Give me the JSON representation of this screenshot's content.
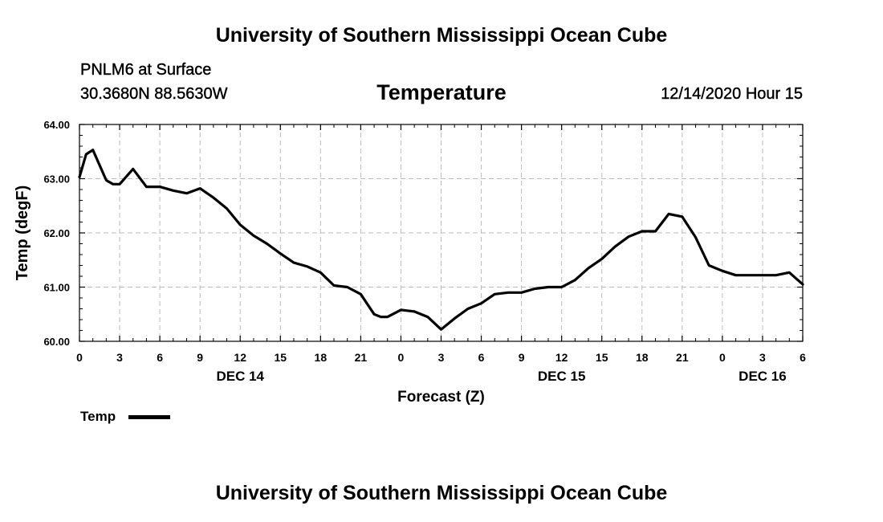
{
  "header": {
    "title": "University of Southern Mississippi Ocean Cube",
    "station": "PNLM6 at Surface",
    "coords": "30.3680N 88.5630W",
    "variable": "Temperature",
    "datetime": "12/14/2020 Hour 15",
    "footer_title": "University of Southern Mississippi Ocean Cube"
  },
  "legend": {
    "label": "Temp"
  },
  "colors": {
    "line": "#000000",
    "grid": "#bbbbbb",
    "axis": "#000000"
  },
  "chart_data": {
    "type": "line",
    "title": "Temperature",
    "xlabel": "Forecast (Z)",
    "ylabel": "Temp (degF)",
    "xlim": [
      0,
      54
    ],
    "ylim": [
      60.0,
      64.0
    ],
    "grid": true,
    "legend_position": "bottom-left",
    "x_ticks": [
      0,
      3,
      6,
      9,
      12,
      15,
      18,
      21,
      24,
      27,
      30,
      33,
      36,
      39,
      42,
      45,
      48,
      51,
      54
    ],
    "x_tick_labels": [
      "0",
      "3",
      "6",
      "9",
      "12",
      "15",
      "18",
      "21",
      "0",
      "3",
      "6",
      "9",
      "12",
      "15",
      "18",
      "21",
      "0",
      "3",
      "6"
    ],
    "y_ticks": [
      60.0,
      61.0,
      62.0,
      63.0,
      64.0
    ],
    "y_tick_labels": [
      "60.00",
      "61.00",
      "62.00",
      "63.00",
      "64.00"
    ],
    "day_labels": [
      {
        "x": 12,
        "label": "DEC 14"
      },
      {
        "x": 36,
        "label": "DEC 15"
      },
      {
        "x": 51,
        "label": "DEC 16"
      }
    ],
    "series": [
      {
        "name": "Temp",
        "x": [
          0,
          0.5,
          1,
          2,
          2.5,
          3,
          4,
          5,
          6,
          7,
          8,
          9,
          10,
          11,
          12,
          13,
          14,
          15,
          16,
          17,
          18,
          19,
          20,
          21,
          22,
          22.5,
          23,
          24,
          25,
          26,
          27,
          28,
          29,
          30,
          31,
          32,
          33,
          34,
          35,
          36,
          37,
          38,
          39,
          40,
          41,
          42,
          43,
          44,
          45,
          46,
          47,
          48,
          49,
          50,
          51,
          52,
          53,
          54
        ],
        "values": [
          63.03,
          63.45,
          63.53,
          62.97,
          62.9,
          62.9,
          63.18,
          62.85,
          62.85,
          62.78,
          62.73,
          62.82,
          62.65,
          62.45,
          62.15,
          61.95,
          61.8,
          61.62,
          61.45,
          61.38,
          61.27,
          61.03,
          61.0,
          60.87,
          60.5,
          60.45,
          60.45,
          60.58,
          60.55,
          60.45,
          60.22,
          60.42,
          60.6,
          60.7,
          60.87,
          60.9,
          60.9,
          60.97,
          61.0,
          61.0,
          61.13,
          61.35,
          61.52,
          61.75,
          61.93,
          62.03,
          62.03,
          62.35,
          62.3,
          61.92,
          61.4,
          61.3,
          61.22,
          61.22,
          61.22,
          61.22,
          61.27,
          61.05
        ]
      }
    ]
  }
}
